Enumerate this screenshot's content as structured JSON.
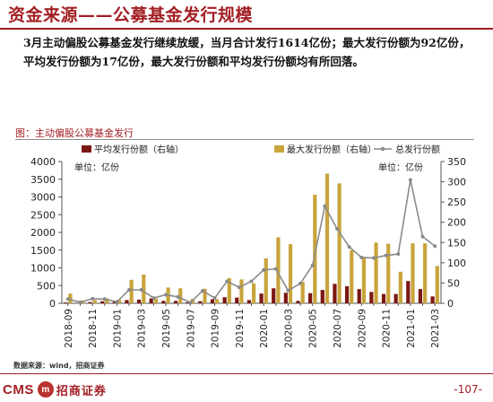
{
  "header": {
    "title": "资金来源——公募基金发行规模",
    "summary": "3月主动偏股公募基金发行继续放缓，当月合计发行1614亿份；最大发行份额为92亿份，平均发行份额为17亿份，最大发行份额和平均发行份额均有所回落。"
  },
  "figure": {
    "label": "图：主动偏股公募基金发行"
  },
  "chart_data": {
    "type": "bar",
    "categories": [
      "2018-09",
      "2018-10",
      "2018-11",
      "2018-12",
      "2019-01",
      "2019-02",
      "2019-03",
      "2019-04",
      "2019-05",
      "2019-06",
      "2019-07",
      "2019-08",
      "2019-09",
      "2019-10",
      "2019-11",
      "2019-12",
      "2020-01",
      "2020-02",
      "2020-03",
      "2020-04",
      "2020-05",
      "2020-06",
      "2020-07",
      "2020-08",
      "2020-09",
      "2020-10",
      "2020-11",
      "2020-12",
      "2021-01",
      "2021-02",
      "2021-03"
    ],
    "x_tick_labels": [
      "2018-09",
      "2018-11",
      "2019-01",
      "2019-03",
      "2019-05",
      "2019-07",
      "2019-09",
      "2019-11",
      "2020-01",
      "2020-03",
      "2020-05",
      "2020-07",
      "2020-09",
      "2020-11",
      "2021-01",
      "2021-03"
    ],
    "series": [
      {
        "name": "平均发行份额（右轴）",
        "axis": "right",
        "color": "#7a1712",
        "values": [
          2,
          1,
          3,
          5,
          4,
          8,
          9,
          12,
          6,
          6,
          3,
          5,
          10,
          15,
          14,
          8,
          24,
          37,
          26,
          6,
          25,
          33,
          48,
          42,
          35,
          28,
          23,
          23,
          55,
          35,
          17
        ]
      },
      {
        "name": "最大发行份额（右轴）",
        "axis": "right",
        "color": "#c9a43c",
        "values": [
          24,
          7,
          8,
          12,
          9,
          58,
          71,
          12,
          39,
          37,
          11,
          36,
          10,
          62,
          59,
          49,
          111,
          163,
          146,
          53,
          268,
          320,
          296,
          131,
          115,
          150,
          147,
          78,
          148,
          148,
          92
        ]
      },
      {
        "name": "总发行份额",
        "axis": "left",
        "color": "#8a8a8a",
        "type": "line",
        "values": [
          120,
          30,
          130,
          120,
          40,
          380,
          380,
          150,
          240,
          180,
          20,
          350,
          150,
          620,
          450,
          620,
          940,
          970,
          360,
          560,
          1070,
          2740,
          2100,
          1590,
          1290,
          1280,
          1350,
          1390,
          3480,
          1880,
          1614
        ]
      }
    ],
    "left_axis": {
      "label": "单位：亿份",
      "ylim": [
        0,
        4000
      ],
      "ticks": [
        0,
        500,
        1000,
        1500,
        2000,
        2500,
        3000,
        3500,
        4000
      ]
    },
    "right_axis": {
      "label": "单位：亿份",
      "ylim": [
        0,
        350
      ],
      "ticks": [
        0,
        50,
        100,
        150,
        200,
        250,
        300,
        350
      ]
    },
    "legend_position": "top",
    "grid": false
  },
  "footer": {
    "source": "数据来源：wind，招商证券",
    "logo_text": "CMS",
    "logo_badge": "m",
    "logo_cn": "招商证券",
    "page": "-107-"
  }
}
